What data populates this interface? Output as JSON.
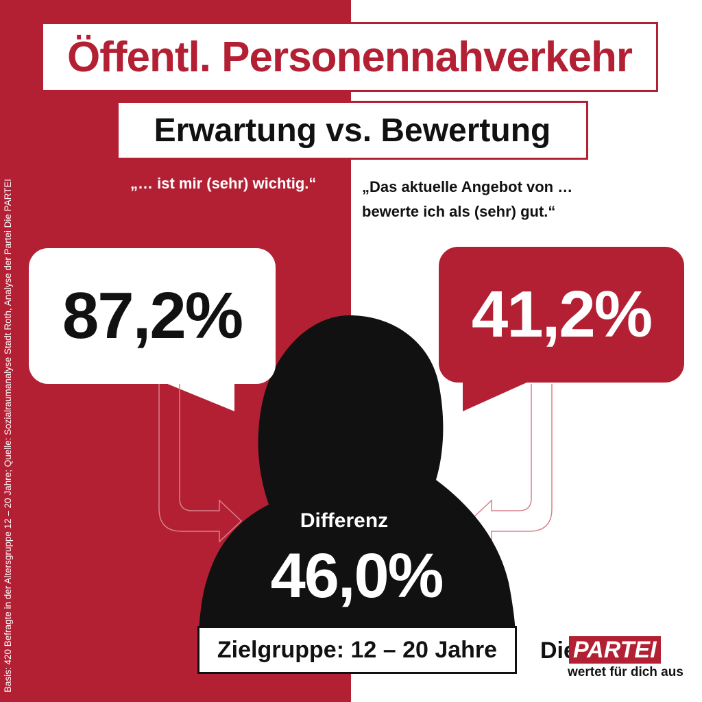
{
  "title": "Öffentl. Personennahverkehr",
  "subtitle": "Erwartung vs. Bewertung",
  "quote_left": "„… ist mir (sehr) wichtig.“",
  "quote_right_line1": "„Das aktuelle Angebot von …",
  "quote_right_line2": "bewerte ich als (sehr) gut.“",
  "value_left": "87,2%",
  "value_right": "41,2%",
  "difference_label": "Differenz",
  "difference_value": "46,0%",
  "target_group": "Zielgruppe: 12 – 20 Jahre",
  "source": "Basis: 420 Befragte in der Altersgruppe  12 – 20 Jahre; Quelle: Sozialraumanalyse  Stadt Roth, Analyse der Partei Die PARTEI",
  "logo": {
    "die": "Die",
    "partei": "PARTEI",
    "claim": "wertet für dich aus"
  },
  "colors": {
    "brand_red": "#b32034",
    "silhouette": "#111111",
    "white": "#ffffff"
  }
}
